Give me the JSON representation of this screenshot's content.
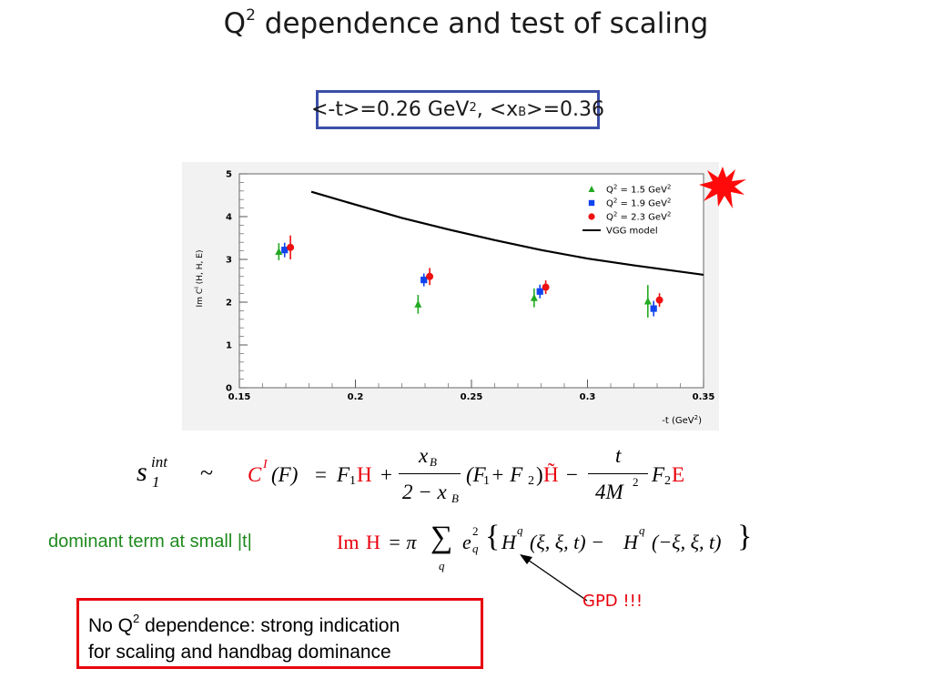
{
  "slide": {
    "title_pre": "Q",
    "title_sup": "2",
    "title_post": " dependence and test of scaling",
    "kinematics_a": "<-t>=0.26 GeV",
    "kinematics_a_sup": "2",
    "kinematics_b": ", <x",
    "kinematics_b_sub": "B",
    "kinematics_c": ">=0.36",
    "dominant_label": "dominant term at small |t|",
    "gpd_label": "GPD !!!",
    "conclusion_a": "No Q",
    "conclusion_sup": "2",
    "conclusion_b": " dependence: strong indication",
    "conclusion_c": "for scaling and handbag dominance",
    "accent_red": "#e8000b",
    "box_blue": "#3b4fa8",
    "text_green": "#1f8a1f"
  },
  "formulas": {
    "f1": {
      "s": "s",
      "s_sub": "1",
      "s_sup": "int",
      "tilde": "~",
      "C": "C",
      "C_sup": "I",
      "paren_F": "(F)",
      "eq": "=",
      "F1": "F",
      "sub1": "1",
      "H": "H",
      "plus": "+",
      "xB": "x",
      "xB_sub": "B",
      "two_minus": "2 − x",
      "F1pF2": "(F",
      "plus_F": " + F",
      "sub2": "2",
      "close": ")",
      "Htilde": "H̃",
      "minus": "−",
      "t": "t",
      "fourM": "4M",
      "M_sup": "2",
      "F2": "F",
      "E": "E"
    },
    "f2": {
      "Im": "Im",
      "H": "H",
      "eq_pi": "= π",
      "sum": "∑",
      "q": "q",
      "e": "e",
      "e_sup": "2",
      "e_sub": "q",
      "open": "{",
      "Hq": "H",
      "Hq_sup": "q",
      "args1": "(ξ, ξ, t) − ",
      "args2": "(−ξ, ξ, t)",
      "close": "}"
    }
  },
  "chart_data": {
    "type": "scatter",
    "title": "",
    "xlabel": "-t (GeV",
    "xlabel_sup": "2",
    "xlabel_end": ")",
    "ylabel": "Im C",
    "ylabel_sup": "I",
    "ylabel_end": " (H, H, E)",
    "xlim": [
      0.15,
      0.35
    ],
    "ylim": [
      0,
      5
    ],
    "x_ticks": [
      "0.15",
      "0.2",
      "0.25",
      "0.3",
      "0.35"
    ],
    "y_ticks": [
      "0",
      "1",
      "2",
      "3",
      "4",
      "5"
    ],
    "grid": false,
    "legend_position": "top-right",
    "series": [
      {
        "name": "Q",
        "name_sup": "2",
        "name_end": " = 1.5 GeV",
        "name_end_sup": "2",
        "marker": "triangle",
        "color": "#22aa22",
        "x": [
          0.167,
          0.227,
          0.277,
          0.326
        ],
        "y": [
          3.18,
          1.95,
          2.1,
          2.02
        ],
        "err": [
          0.2,
          0.22,
          0.22,
          0.38
        ]
      },
      {
        "name": "Q",
        "name_sup": "2",
        "name_end": " = 1.9 GeV",
        "name_end_sup": "2",
        "marker": "square",
        "color": "#1144ee",
        "x": [
          0.1695,
          0.2295,
          0.2795,
          0.3285
        ],
        "y": [
          3.22,
          2.52,
          2.25,
          1.85
        ],
        "err": [
          0.17,
          0.15,
          0.16,
          0.18
        ]
      },
      {
        "name": "Q",
        "name_sup": "2",
        "name_end": " = 2.3 GeV",
        "name_end_sup": "2",
        "marker": "circle",
        "color": "#ee1111",
        "x": [
          0.172,
          0.232,
          0.282,
          0.331
        ],
        "y": [
          3.28,
          2.6,
          2.35,
          2.05
        ],
        "err": [
          0.28,
          0.2,
          0.16,
          0.16
        ]
      },
      {
        "name": "VGG model",
        "marker": "line",
        "color": "#000000",
        "x": [
          0.181,
          0.2,
          0.22,
          0.24,
          0.26,
          0.28,
          0.3,
          0.32,
          0.35
        ],
        "y": [
          4.58,
          4.28,
          3.97,
          3.7,
          3.45,
          3.22,
          3.02,
          2.86,
          2.64
        ]
      }
    ]
  }
}
